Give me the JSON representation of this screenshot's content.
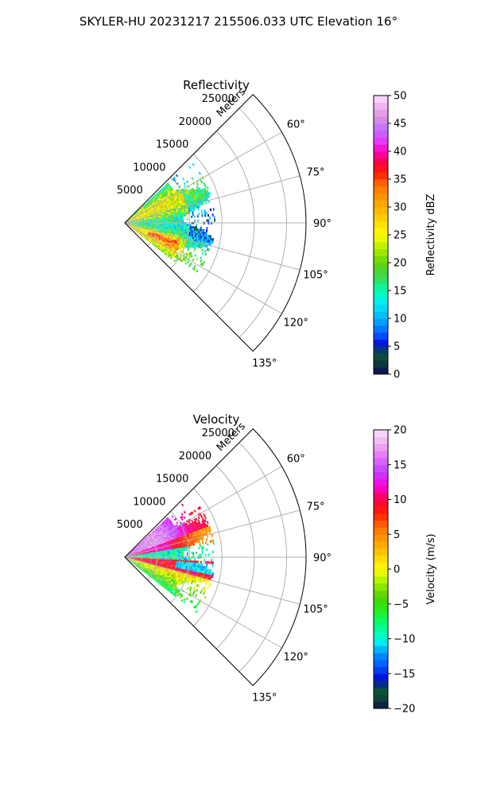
{
  "figure": {
    "suptitle": "SKYLER-HU  20231217  215506.033 UTC Elevation 16°"
  },
  "chart_data": [
    {
      "type": "heatmap",
      "title": "Reflectivity",
      "range_label": "Meters",
      "r_ticks": [
        5000,
        10000,
        15000,
        20000,
        25000
      ],
      "r_tick_labels": [
        "5000",
        "10000",
        "15000",
        "20000",
        "25000"
      ],
      "r_max": 28000,
      "azimuth_range_deg": [
        45,
        135
      ],
      "theta_ticks": [
        60,
        75,
        90,
        105,
        120,
        135
      ],
      "theta_tick_labels": [
        "60°",
        "75°",
        "90°",
        "105°",
        "120°",
        "135°"
      ],
      "data_extent_m": 14000,
      "colorbar": {
        "label": "Reflectivity dBZ",
        "range": [
          0,
          50
        ],
        "ticks": [
          0,
          5,
          10,
          15,
          20,
          25,
          30,
          35,
          40,
          45,
          50
        ],
        "tick_labels": [
          "0",
          "5",
          "10",
          "15",
          "20",
          "25",
          "30",
          "35",
          "40",
          "45",
          "50"
        ],
        "colormap": [
          [
            0,
            "#0a0a5a"
          ],
          [
            2,
            "#0d3b3b"
          ],
          [
            4,
            "#0a5a3a"
          ],
          [
            5,
            "#0000cc"
          ],
          [
            7,
            "#0050ff"
          ],
          [
            9,
            "#0096ff"
          ],
          [
            11,
            "#00c8ff"
          ],
          [
            13,
            "#00f0f0"
          ],
          [
            15,
            "#00ffb0"
          ],
          [
            17,
            "#30e060"
          ],
          [
            19,
            "#50d020"
          ],
          [
            21,
            "#80e000"
          ],
          [
            23,
            "#c0f000"
          ],
          [
            25,
            "#ffff00"
          ],
          [
            28,
            "#ffd000"
          ],
          [
            31,
            "#ffa000"
          ],
          [
            34,
            "#ff7000"
          ],
          [
            36,
            "#ff2000"
          ],
          [
            38,
            "#ff0040"
          ],
          [
            40,
            "#ff00c0"
          ],
          [
            42,
            "#e040ff"
          ],
          [
            44,
            "#c070ff"
          ],
          [
            46,
            "#e090e0"
          ],
          [
            48,
            "#f0b0f0"
          ],
          [
            50,
            "#ffe0ff"
          ]
        ]
      }
    },
    {
      "type": "heatmap",
      "title": "Velocity",
      "range_label": "Meters",
      "r_ticks": [
        5000,
        10000,
        15000,
        20000,
        25000
      ],
      "r_tick_labels": [
        "5000",
        "10000",
        "15000",
        "20000",
        "25000"
      ],
      "r_max": 28000,
      "azimuth_range_deg": [
        45,
        135
      ],
      "theta_ticks": [
        60,
        75,
        90,
        105,
        120,
        135
      ],
      "theta_tick_labels": [
        "60°",
        "75°",
        "90°",
        "105°",
        "120°",
        "135°"
      ],
      "data_extent_m": 14000,
      "colorbar": {
        "label": "Velocity (m/s)",
        "range": [
          -20,
          20
        ],
        "ticks": [
          -20,
          -15,
          -10,
          -5,
          0,
          5,
          10,
          15,
          20
        ],
        "tick_labels": [
          "−20",
          "−15",
          "−10",
          "−5",
          "0",
          "5",
          "10",
          "15",
          "20"
        ],
        "colormap": [
          [
            -20,
            "#0a0a4a"
          ],
          [
            -19,
            "#0d3b3b"
          ],
          [
            -17,
            "#0a5a3a"
          ],
          [
            -16,
            "#0000cc"
          ],
          [
            -14,
            "#0050ff"
          ],
          [
            -12,
            "#0096ff"
          ],
          [
            -11,
            "#00d8ff"
          ],
          [
            -10,
            "#00ffe0"
          ],
          [
            -8,
            "#00ff80"
          ],
          [
            -6,
            "#20f020"
          ],
          [
            -4,
            "#50d000"
          ],
          [
            -2,
            "#a0f000"
          ],
          [
            0,
            "#ffff00"
          ],
          [
            2,
            "#ffd000"
          ],
          [
            4,
            "#ffa000"
          ],
          [
            6,
            "#ff7000"
          ],
          [
            8,
            "#ff2000"
          ],
          [
            10,
            "#ff0040"
          ],
          [
            12,
            "#ff00e0"
          ],
          [
            14,
            "#c040ff"
          ],
          [
            16,
            "#e070ff"
          ],
          [
            18,
            "#f0b0f0"
          ],
          [
            20,
            "#ffe0ff"
          ]
        ]
      }
    }
  ]
}
